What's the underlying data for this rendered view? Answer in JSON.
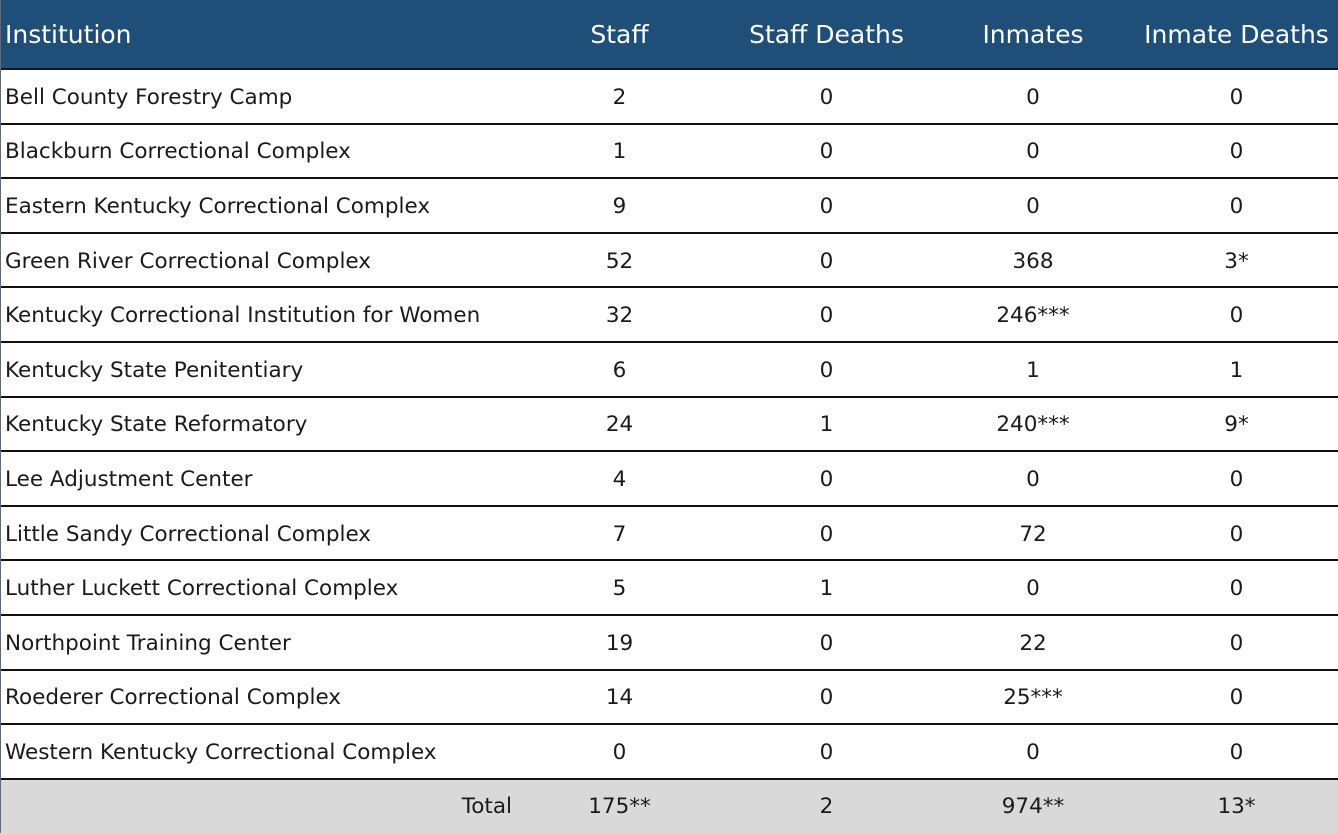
{
  "columns": {
    "institution": "Institution",
    "staff": "Staff",
    "staff_deaths": "Staff Deaths",
    "inmates": "Inmates",
    "inmate_deaths": "Inmate Deaths"
  },
  "rows": [
    {
      "institution": "Bell County Forestry Camp",
      "staff": "2",
      "staff_deaths": "0",
      "inmates": "0",
      "inmate_deaths": "0"
    },
    {
      "institution": "Blackburn Correctional Complex",
      "staff": "1",
      "staff_deaths": "0",
      "inmates": "0",
      "inmate_deaths": "0"
    },
    {
      "institution": "Eastern Kentucky Correctional Complex",
      "staff": "9",
      "staff_deaths": "0",
      "inmates": "0",
      "inmate_deaths": "0"
    },
    {
      "institution": "Green River Correctional Complex",
      "staff": "52",
      "staff_deaths": "0",
      "inmates": "368",
      "inmate_deaths": "3*"
    },
    {
      "institution": "Kentucky Correctional Institution for Women",
      "staff": "32",
      "staff_deaths": "0",
      "inmates": "246***",
      "inmate_deaths": "0"
    },
    {
      "institution": "Kentucky State Penitentiary",
      "staff": "6",
      "staff_deaths": "0",
      "inmates": "1",
      "inmate_deaths": "1"
    },
    {
      "institution": "Kentucky State Reformatory",
      "staff": "24",
      "staff_deaths": "1",
      "inmates": "240***",
      "inmate_deaths": "9*"
    },
    {
      "institution": "Lee Adjustment Center",
      "staff": "4",
      "staff_deaths": "0",
      "inmates": "0",
      "inmate_deaths": "0"
    },
    {
      "institution": "Little Sandy Correctional Complex",
      "staff": "7",
      "staff_deaths": "0",
      "inmates": "72",
      "inmate_deaths": "0"
    },
    {
      "institution": "Luther Luckett Correctional Complex",
      "staff": "5",
      "staff_deaths": "1",
      "inmates": "0",
      "inmate_deaths": "0"
    },
    {
      "institution": "Northpoint Training Center",
      "staff": "19",
      "staff_deaths": "0",
      "inmates": "22",
      "inmate_deaths": "0"
    },
    {
      "institution": "Roederer Correctional Complex",
      "staff": "14",
      "staff_deaths": "0",
      "inmates": "25***",
      "inmate_deaths": "0"
    },
    {
      "institution": "Western Kentucky Correctional Complex",
      "staff": "0",
      "staff_deaths": "0",
      "inmates": "0",
      "inmate_deaths": "0"
    }
  ],
  "total": {
    "label": "Total",
    "staff": "175**",
    "staff_deaths": "2",
    "inmates": "974**",
    "inmate_deaths": "13*"
  },
  "colors": {
    "header_bg": "#1f4e79",
    "header_text": "#ffffff",
    "total_bg": "#d9d9d9"
  }
}
